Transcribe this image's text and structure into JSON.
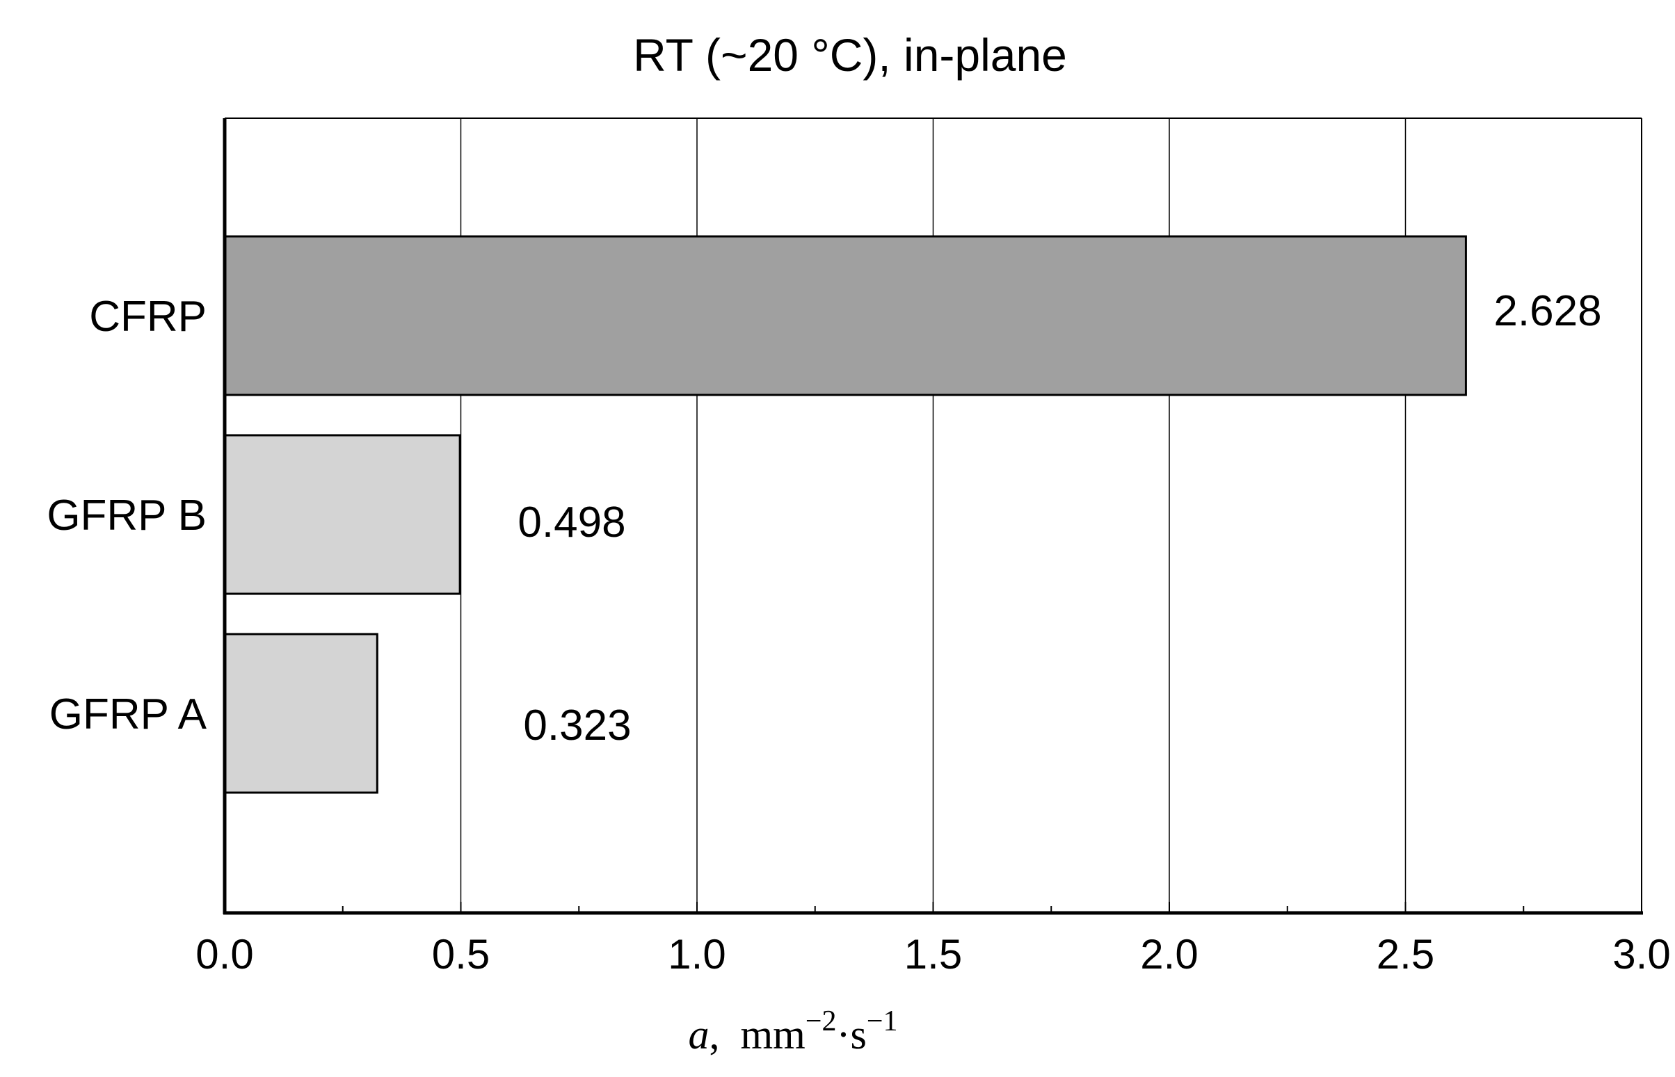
{
  "chart_data": {
    "type": "bar",
    "orientation": "horizontal",
    "title": "RT (~20 °C), in-plane",
    "categories": [
      "CFRP",
      "GFRP B",
      "GFRP A"
    ],
    "values": [
      2.628,
      0.498,
      0.323
    ],
    "value_labels": [
      "2.628",
      "0.498",
      "0.323"
    ],
    "xlabel": {
      "symbol": "a",
      "separator": ",",
      "unit_base": "mm",
      "unit_exp": "−2",
      "dot": "·",
      "unit_base2": "s",
      "unit_exp2": "−1"
    },
    "xlim": [
      0,
      3.0
    ],
    "xticks": [
      "0.0",
      "0.5",
      "1.0",
      "1.5",
      "2.0",
      "2.5",
      "3.0"
    ],
    "grid": true,
    "legend": "none",
    "bar_colors": [
      "#a0a0a0",
      "#d4d4d4",
      "#d4d4d4"
    ],
    "bar_edge_color": "#000000"
  }
}
